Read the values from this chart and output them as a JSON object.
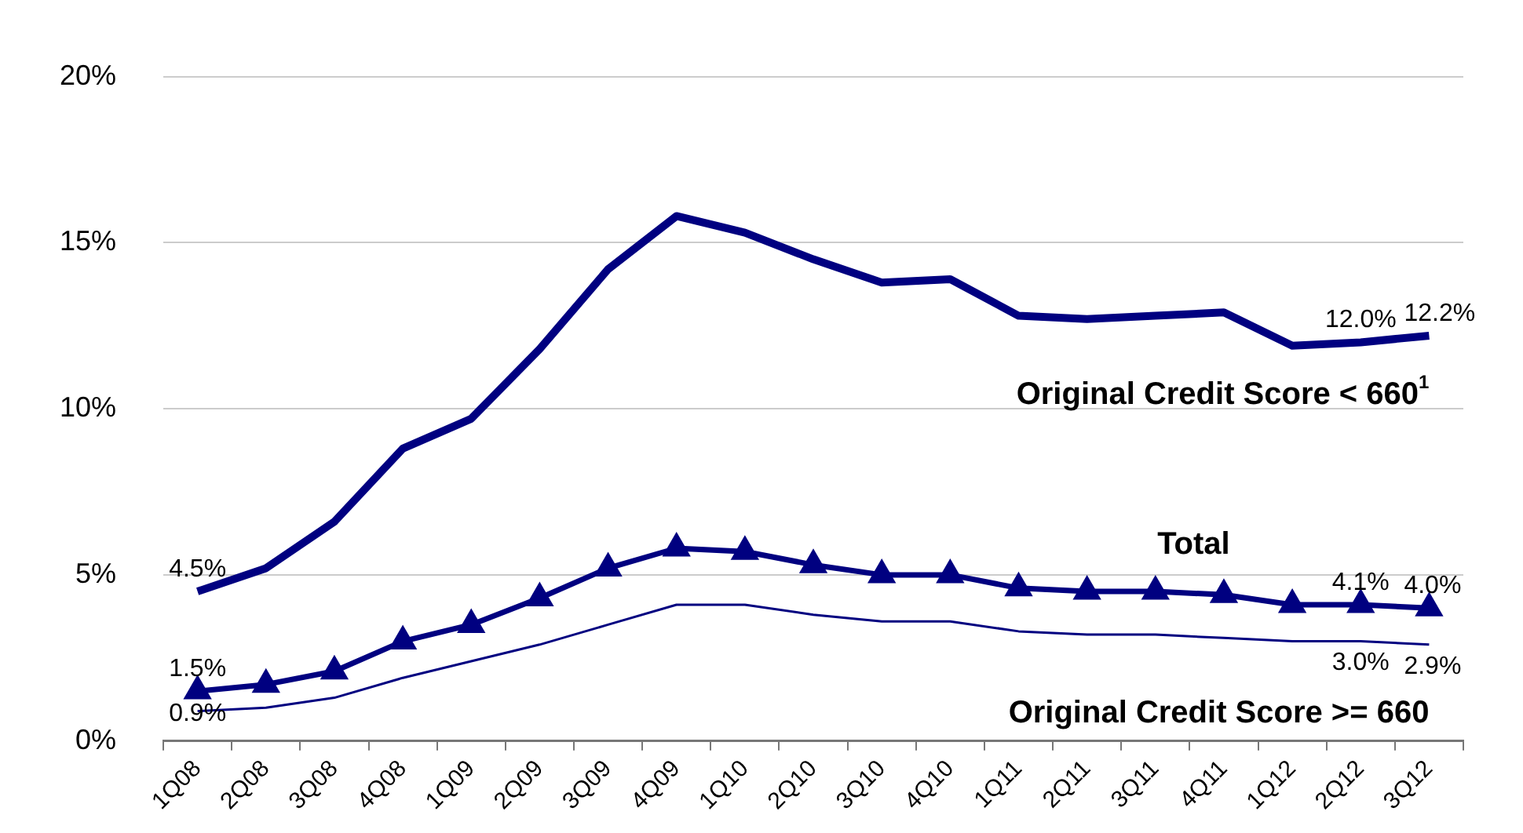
{
  "chart_data": {
    "type": "line",
    "categories": [
      "1Q08",
      "2Q08",
      "3Q08",
      "4Q08",
      "1Q09",
      "2Q09",
      "3Q09",
      "4Q09",
      "1Q10",
      "2Q10",
      "3Q10",
      "4Q10",
      "1Q11",
      "2Q11",
      "3Q11",
      "4Q11",
      "1Q12",
      "2Q12",
      "3Q12"
    ],
    "series": [
      {
        "name": "Original Credit Score < 660$^{1}$",
        "color": "#000080",
        "marker": "none",
        "values": [
          4.5,
          5.2,
          6.6,
          8.8,
          9.7,
          11.8,
          14.2,
          15.8,
          15.3,
          14.5,
          13.8,
          13.9,
          12.8,
          12.7,
          12.8,
          12.9,
          11.9,
          12.0,
          12.2
        ],
        "value_labels": [
          "4.5%",
          null,
          null,
          null,
          null,
          null,
          null,
          null,
          null,
          null,
          null,
          null,
          null,
          null,
          null,
          null,
          null,
          "12.0%",
          "12.2%"
        ]
      },
      {
        "name": "Total",
        "color": "#000080",
        "marker": "triangle",
        "values": [
          1.5,
          1.7,
          2.1,
          3.0,
          3.5,
          4.3,
          5.2,
          5.8,
          5.7,
          5.3,
          5.0,
          5.0,
          4.6,
          4.5,
          4.5,
          4.4,
          4.1,
          4.1,
          4.0
        ],
        "value_labels": [
          "1.5%",
          null,
          null,
          null,
          null,
          null,
          null,
          null,
          null,
          null,
          null,
          null,
          null,
          null,
          null,
          null,
          null,
          "4.1%",
          "4.0%"
        ]
      },
      {
        "name": "Original Credit Score >= 660",
        "color": "#000080",
        "marker": "none",
        "values": [
          0.9,
          1.0,
          1.3,
          1.9,
          2.4,
          2.9,
          3.5,
          4.1,
          4.1,
          3.8,
          3.6,
          3.6,
          3.3,
          3.2,
          3.2,
          3.1,
          3.0,
          3.0,
          2.9
        ],
        "value_labels": [
          "0.9%",
          null,
          null,
          null,
          null,
          null,
          null,
          null,
          null,
          null,
          null,
          null,
          null,
          null,
          null,
          null,
          null,
          "3.0%",
          "2.9%"
        ]
      }
    ],
    "ylim": [
      0,
      20
    ],
    "yticks": [
      {
        "value": 0,
        "label": "0%"
      },
      {
        "value": 5,
        "label": "5%"
      },
      {
        "value": 10,
        "label": "10%"
      },
      {
        "value": 15,
        "label": "15%"
      },
      {
        "value": 20,
        "label": "20%"
      }
    ],
    "grid": "y",
    "legend": false
  }
}
